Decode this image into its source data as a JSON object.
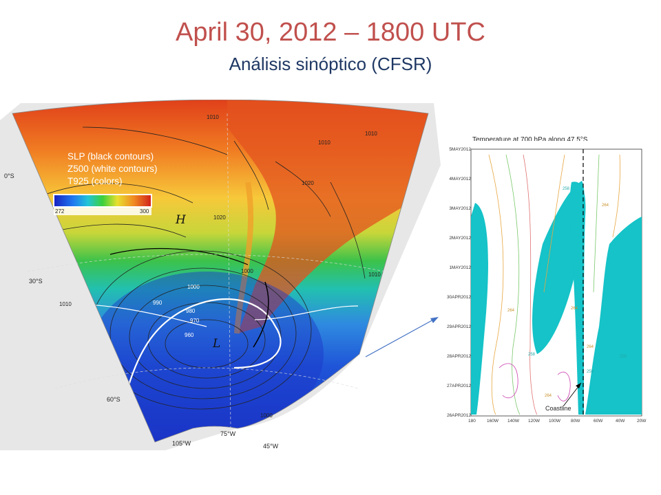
{
  "header": {
    "title": "April 30, 2012 – 1800 UTC",
    "subtitle": "Análisis sinóptico (CFSR)"
  },
  "map": {
    "legend": {
      "line1": "SLP (black contours)",
      "line2": "Z500 (white contours)",
      "line3": "T925 (colors)"
    },
    "colorbar": {
      "min": "272",
      "max": "300"
    },
    "lat_labels": [
      "0°S",
      "30°S",
      "60°S"
    ],
    "lon_labels": [
      "105°W",
      "75°W",
      "45°W"
    ],
    "pressure_labels": [
      "1010",
      "1010",
      "1020",
      "1020",
      "1010",
      "1010",
      "1010",
      "1000",
      "990",
      "980",
      "970",
      "960",
      "1000",
      "1000"
    ],
    "high_label": "H",
    "low_label": "L"
  },
  "hovmoller": {
    "title": "Temperature at 700 hPa along 47.5°S",
    "dates": [
      "5MAY2012",
      "4MAY2012",
      "3MAY2012",
      "2MAY2012",
      "1MAY2012",
      "30APR2012",
      "29APR2012",
      "28APR2012",
      "27APR2012",
      "26APR2012"
    ],
    "longitudes": [
      "180",
      "160W",
      "140W",
      "120W",
      "100W",
      "80W",
      "60W",
      "40W",
      "20W"
    ],
    "contour_labels": [
      "258",
      "264",
      "264",
      "264",
      "264",
      "258",
      "258",
      "258",
      "264"
    ],
    "coastline_label": "Coastline"
  },
  "colors": {
    "title": "#c0504d",
    "subtitle": "#1f3864",
    "shading": "#15c3c8",
    "arrow": "#4472c4"
  }
}
